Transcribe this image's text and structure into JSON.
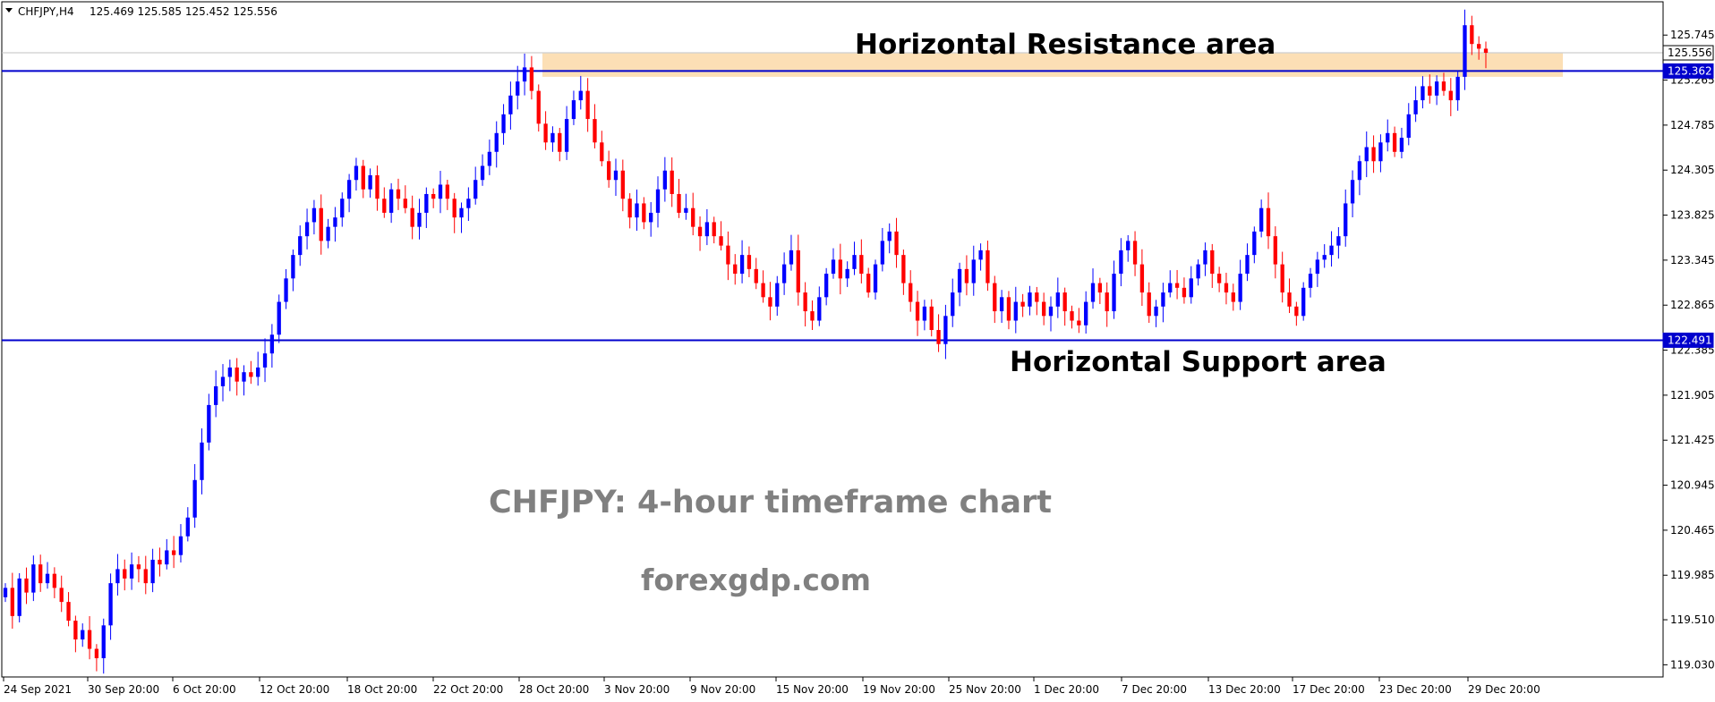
{
  "header": {
    "symbol": "CHFJPY,H4",
    "ohlc": "125.469 125.585 125.452 125.556"
  },
  "annotations": {
    "resistance_label": "Horizontal Resistance area",
    "support_label": "Horizontal Support area",
    "chart_title": "CHFJPY: 4-hour timeframe chart",
    "watermark": "forexgdp.com"
  },
  "colors": {
    "bull": "#0000ff",
    "bear": "#ff0000",
    "level_line": "#0000cd",
    "zone_fill": "#fbd9a8",
    "price_tag": "#0000cd",
    "annotation_text": "#808080"
  },
  "chart_data": {
    "type": "candlestick",
    "timeframe": "H4",
    "ylim": [
      118.9,
      126.1
    ],
    "grid": false,
    "yticks": [
      "125.745",
      "125.265",
      "124.785",
      "124.305",
      "123.825",
      "123.345",
      "122.865",
      "122.385",
      "121.905",
      "121.425",
      "120.945",
      "120.465",
      "119.985",
      "119.510",
      "119.030"
    ],
    "xticks": [
      "24 Sep 2021",
      "30 Sep 20:00",
      "6 Oct 20:00",
      "12 Oct 20:00",
      "18 Oct 20:00",
      "22 Oct 20:00",
      "28 Oct 20:00",
      "3 Nov 20:00",
      "9 Nov 20:00",
      "15 Nov 20:00",
      "19 Nov 20:00",
      "25 Nov 20:00",
      "1 Dec 20:00",
      "7 Dec 20:00",
      "13 Dec 20:00",
      "17 Dec 20:00",
      "23 Dec 20:00",
      "29 Dec 20:00"
    ],
    "levels": [
      {
        "value": 125.362,
        "label": "125.362"
      },
      {
        "value": 122.491,
        "label": "122.491"
      }
    ],
    "current_price": {
      "value": 125.556,
      "label": "125.556"
    },
    "resistance_zone": [
      125.3,
      125.55
    ],
    "closes": [
      119.85,
      119.55,
      119.95,
      119.8,
      120.1,
      119.9,
      120.0,
      119.85,
      119.7,
      119.5,
      119.3,
      119.4,
      119.2,
      119.1,
      119.45,
      119.9,
      120.05,
      119.95,
      120.1,
      120.05,
      119.9,
      120.15,
      120.1,
      120.25,
      120.2,
      120.4,
      120.6,
      121.0,
      121.4,
      121.8,
      122.0,
      122.1,
      122.2,
      122.05,
      122.15,
      122.1,
      122.2,
      122.35,
      122.55,
      122.9,
      123.15,
      123.4,
      123.6,
      123.75,
      123.9,
      123.55,
      123.7,
      123.8,
      124.0,
      124.2,
      124.35,
      124.1,
      124.25,
      124.0,
      123.85,
      124.1,
      124.0,
      123.9,
      123.7,
      123.85,
      124.05,
      124.0,
      124.15,
      124.0,
      123.8,
      123.9,
      124.0,
      124.2,
      124.35,
      124.5,
      124.7,
      124.9,
      125.1,
      125.25,
      125.4,
      125.15,
      124.8,
      124.6,
      124.7,
      124.5,
      124.85,
      125.05,
      125.15,
      124.85,
      124.6,
      124.4,
      124.2,
      124.3,
      124.0,
      123.8,
      123.95,
      123.75,
      123.85,
      124.1,
      124.3,
      124.05,
      123.85,
      123.9,
      123.7,
      123.6,
      123.75,
      123.6,
      123.5,
      123.3,
      123.2,
      123.4,
      123.25,
      123.1,
      122.95,
      122.85,
      123.1,
      123.3,
      123.45,
      123.0,
      122.8,
      122.7,
      122.95,
      123.2,
      123.35,
      123.15,
      123.25,
      123.4,
      123.2,
      123.0,
      123.3,
      123.55,
      123.65,
      123.4,
      123.1,
      122.9,
      122.7,
      122.85,
      122.6,
      122.45,
      122.75,
      123.0,
      123.25,
      123.1,
      123.35,
      123.45,
      123.1,
      122.8,
      122.95,
      122.7,
      122.9,
      122.85,
      123.0,
      122.9,
      122.75,
      122.85,
      123.0,
      122.8,
      122.7,
      122.65,
      122.9,
      123.1,
      123.0,
      122.8,
      123.2,
      123.45,
      123.55,
      123.3,
      123.0,
      122.75,
      122.85,
      123.0,
      123.1,
      123.05,
      122.95,
      123.15,
      123.3,
      123.45,
      123.2,
      123.1,
      123.0,
      122.9,
      123.2,
      123.4,
      123.65,
      123.9,
      123.6,
      123.3,
      123.0,
      122.85,
      122.75,
      123.05,
      123.2,
      123.35,
      123.4,
      123.5,
      123.6,
      123.95,
      124.2,
      124.4,
      124.55,
      124.4,
      124.6,
      124.7,
      124.5,
      124.65,
      124.9,
      125.05,
      125.2,
      125.1,
      125.25,
      125.15,
      125.05,
      125.3,
      125.85,
      125.65,
      125.6,
      125.556
    ]
  }
}
